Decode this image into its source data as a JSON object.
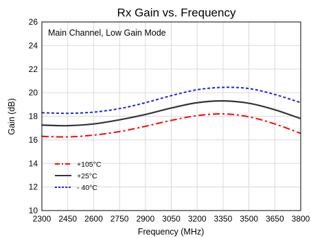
{
  "chart_data": {
    "type": "line",
    "title": "Rx Gain vs. Frequency",
    "annotation": "Main Channel, Low Gain Mode",
    "xlabel": "Frequency (MHz)",
    "ylabel": "Gain (dB)",
    "xlim": [
      2300,
      3800
    ],
    "ylim": [
      10,
      26
    ],
    "x_ticks": [
      2300,
      2450,
      2600,
      2750,
      2900,
      3050,
      3200,
      3350,
      3500,
      3650,
      3800
    ],
    "y_ticks": [
      10,
      12,
      14,
      16,
      18,
      20,
      22,
      24,
      26
    ],
    "grid": true,
    "legend_position": "bottom-left",
    "x": [
      2300,
      2450,
      2600,
      2750,
      2900,
      3050,
      3200,
      3350,
      3500,
      3650,
      3800
    ],
    "series": [
      {
        "name": "+105°C",
        "color": "#ff0000",
        "dash": "dash-dot",
        "values": [
          16.3,
          16.25,
          16.4,
          16.7,
          17.15,
          17.65,
          18.05,
          18.2,
          17.95,
          17.35,
          16.55
        ]
      },
      {
        "name": "+25°C",
        "color": "#333333",
        "dash": "solid",
        "values": [
          17.25,
          17.2,
          17.35,
          17.7,
          18.15,
          18.7,
          19.15,
          19.3,
          19.1,
          18.55,
          17.8
        ]
      },
      {
        "name": "- 40°C",
        "color": "#1f1fdd",
        "dash": "dotted",
        "values": [
          18.3,
          18.25,
          18.35,
          18.65,
          19.15,
          19.75,
          20.25,
          20.45,
          20.35,
          19.85,
          19.15
        ]
      }
    ]
  }
}
